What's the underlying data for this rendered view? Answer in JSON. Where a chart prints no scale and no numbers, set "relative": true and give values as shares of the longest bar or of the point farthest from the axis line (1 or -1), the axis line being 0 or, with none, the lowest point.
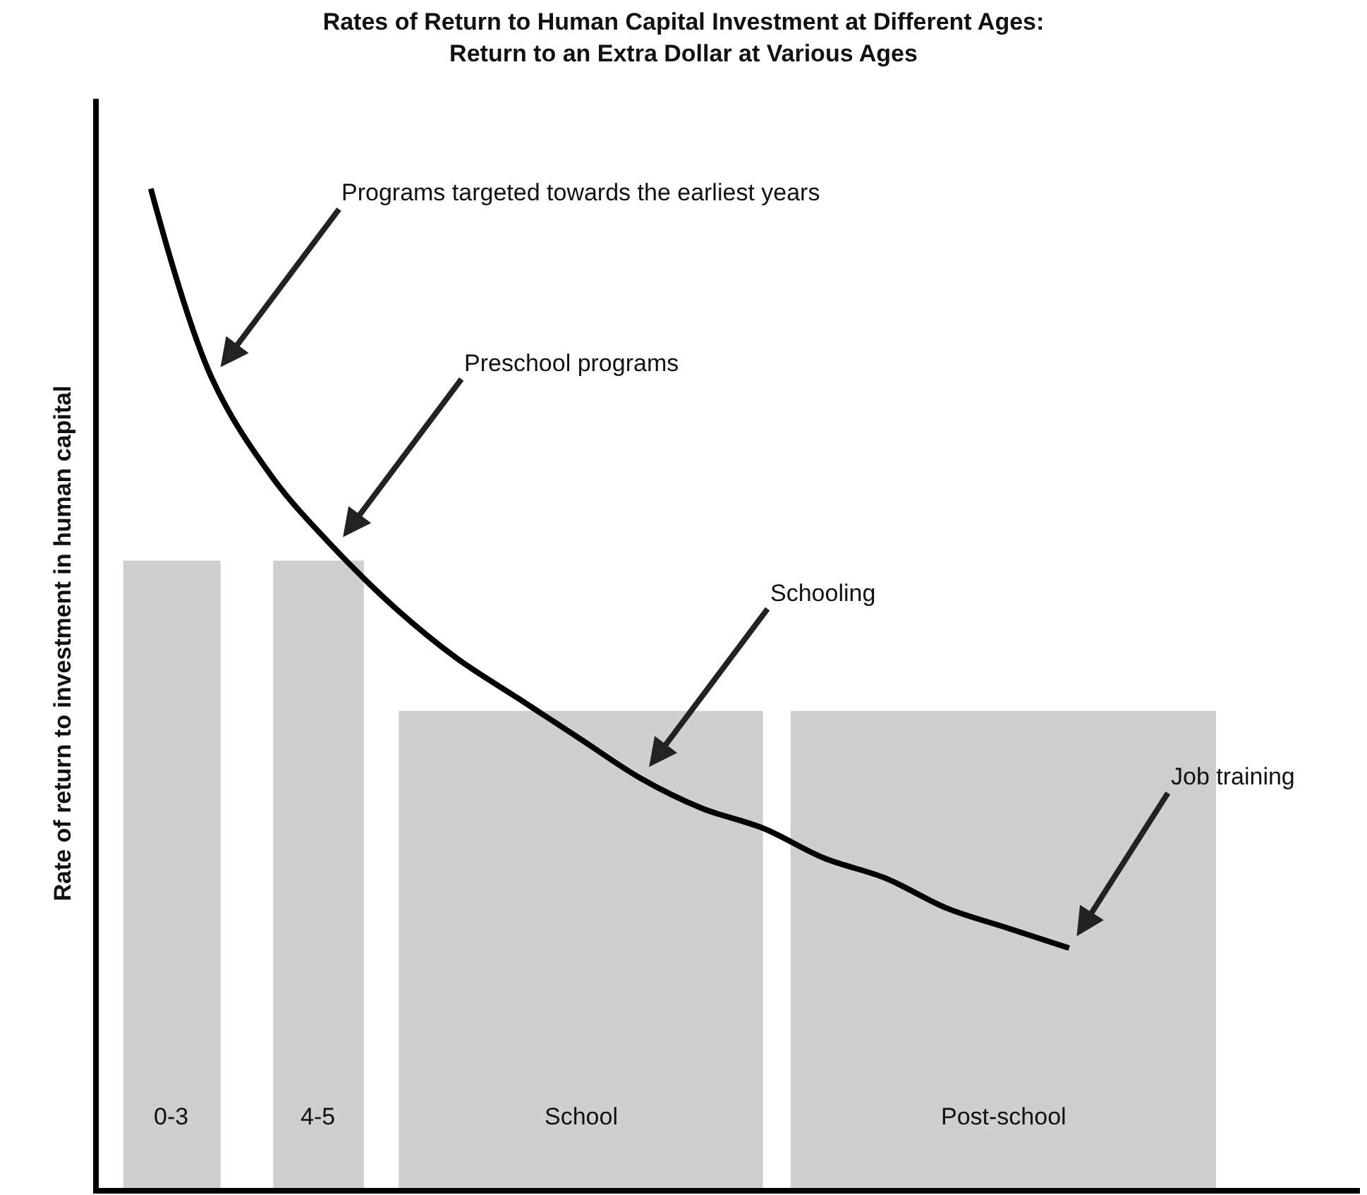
{
  "chart_data": {
    "type": "line",
    "relative": true,
    "title": "Rates of Return to Human Capital Investment at Different Ages:\nReturn to an Extra Dollar at Various Ages",
    "ylabel": "Rate of return to investment in human capital",
    "categories": [
      null,
      null,
      null,
      null,
      null,
      null,
      null,
      null,
      null,
      null,
      null,
      null,
      null,
      null,
      null,
      null,
      null,
      null,
      null,
      null
    ],
    "series": [
      {
        "color": "#000000",
        "values": [
          1.0,
          0.81,
          0.71,
          0.64,
          0.58,
          0.53,
          0.49,
          0.45,
          0.41,
          0.38,
          0.36,
          0.33,
          0.31,
          0.28,
          0.26,
          0.24,
          null,
          null,
          null,
          null
        ]
      }
    ],
    "annotations": [
      "Programs targeted towards the earliest years",
      "Preschool programs",
      "Schooling",
      "Job training",
      "0-3",
      "4-5",
      "School",
      "Post-school"
    ],
    "grid": false,
    "marker": "none",
    "line_style": "solid"
  }
}
